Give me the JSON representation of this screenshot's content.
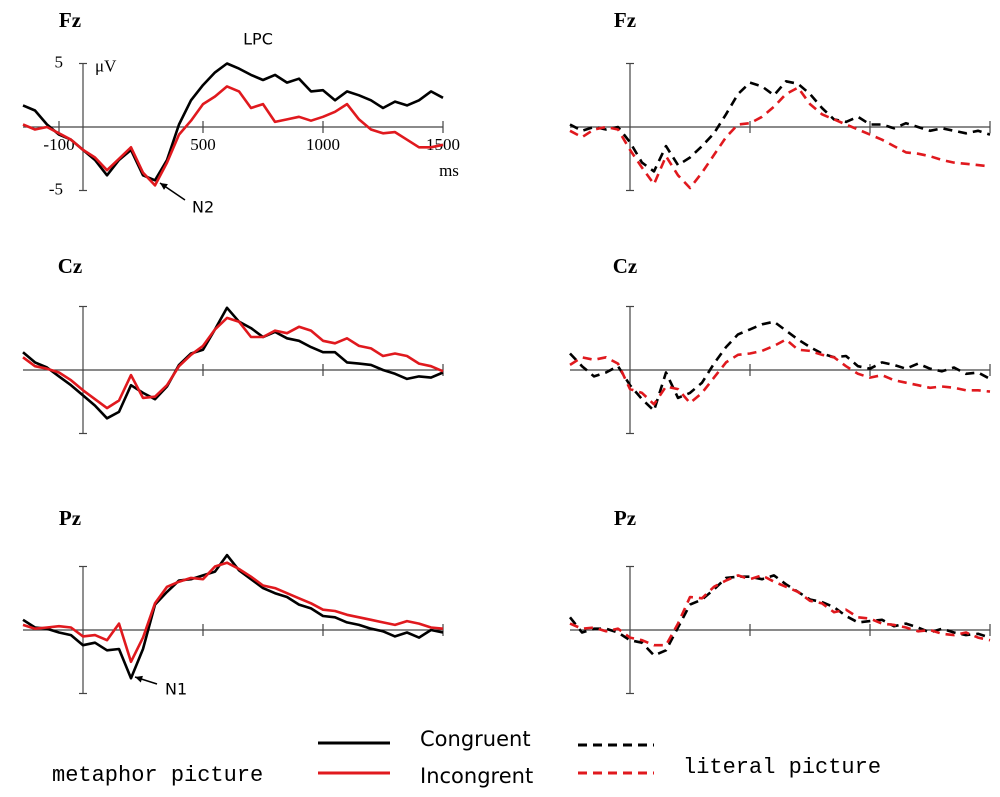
{
  "chart_data": [
    {
      "type": "line",
      "title": "Fz",
      "xlabel": "ms",
      "ylabel": "μV",
      "dashed": false,
      "show_tick_labels": true,
      "annotations": [
        "LPC",
        "N2"
      ],
      "x": [
        -250,
        -200,
        -150,
        -100,
        -50,
        0,
        50,
        100,
        150,
        200,
        250,
        300,
        350,
        400,
        450,
        500,
        550,
        600,
        650,
        700,
        750,
        800,
        850,
        900,
        950,
        1000,
        1050,
        1100,
        1150,
        1200,
        1250,
        1300,
        1350,
        1400,
        1450,
        1500
      ],
      "xlim": [
        -250,
        1500
      ],
      "xticks": [
        -100,
        500,
        1000,
        1500
      ],
      "ylim": [
        -5,
        5
      ],
      "yticks": [
        -5,
        5
      ],
      "series": [
        {
          "name": "Congruent",
          "color": "#000000",
          "values": [
            1.7,
            1.3,
            0.2,
            -0.6,
            -1,
            -1.8,
            -2.6,
            -3.8,
            -2.6,
            -1.8,
            -3.8,
            -4.2,
            -2.6,
            0.2,
            2.1,
            3.3,
            4.3,
            5,
            4.6,
            4.1,
            3.7,
            4.1,
            3.5,
            3.8,
            2.8,
            2.9,
            2.1,
            2.8,
            2.5,
            2.1,
            1.5,
            2,
            1.7,
            2.1,
            2.8,
            2.3
          ]
        },
        {
          "name": "Incongrent",
          "color": "#e0191e",
          "values": [
            0.2,
            -0.2,
            0,
            -0.5,
            -1,
            -1.8,
            -2.4,
            -3.4,
            -2.5,
            -1.6,
            -3.6,
            -4.6,
            -2.8,
            -0.6,
            0.5,
            1.8,
            2.4,
            3.2,
            2.8,
            1.5,
            1.8,
            0.4,
            0.6,
            0.8,
            0.5,
            0.8,
            1.2,
            1.8,
            0.6,
            -0.2,
            -0.5,
            -0.4,
            -1,
            -1.6,
            -1.6,
            -1.4
          ]
        }
      ]
    },
    {
      "type": "line",
      "title": "Cz",
      "dashed": false,
      "show_tick_labels": false,
      "x": [
        -250,
        -200,
        -150,
        -100,
        -50,
        0,
        50,
        100,
        150,
        200,
        250,
        300,
        350,
        400,
        450,
        500,
        550,
        600,
        650,
        700,
        750,
        800,
        850,
        900,
        950,
        1000,
        1050,
        1100,
        1150,
        1200,
        1250,
        1300,
        1350,
        1400,
        1450,
        1500
      ],
      "xlim": [
        -250,
        1500
      ],
      "xticks": [
        500,
        1000,
        1500
      ],
      "ylim": [
        -5,
        5
      ],
      "yticks": [
        -5,
        5
      ],
      "series": [
        {
          "name": "Congruent",
          "color": "#000000",
          "values": [
            1.4,
            0.6,
            0.2,
            -0.5,
            -1.2,
            -2,
            -2.8,
            -3.8,
            -3.3,
            -1.2,
            -1.8,
            -2.3,
            -1.3,
            0.4,
            1.3,
            1.6,
            3.2,
            4.9,
            3.8,
            3.3,
            2.6,
            3,
            2.5,
            2.3,
            1.8,
            1.4,
            1.4,
            0.6,
            0.5,
            0.4,
            0,
            -0.3,
            -0.7,
            -0.5,
            -0.6,
            -0.2
          ]
        },
        {
          "name": "Incongrent",
          "color": "#e0191e",
          "values": [
            1,
            0.3,
            0.1,
            -0.2,
            -0.8,
            -1.6,
            -2.3,
            -3,
            -2.4,
            -0.4,
            -2.2,
            -2.1,
            -1.2,
            0.3,
            1.2,
            1.9,
            3.2,
            4.1,
            3.8,
            2.6,
            2.6,
            3.1,
            2.9,
            3.4,
            3.1,
            2.3,
            2.1,
            2.5,
            1.9,
            1.7,
            1.1,
            1.3,
            1.1,
            0.5,
            0.3,
            -0.1
          ]
        }
      ]
    },
    {
      "type": "line",
      "title": "Pz",
      "dashed": false,
      "show_tick_labels": false,
      "annotations": [
        "N1"
      ],
      "x": [
        -250,
        -200,
        -150,
        -100,
        -50,
        0,
        50,
        100,
        150,
        200,
        250,
        300,
        350,
        400,
        450,
        500,
        550,
        600,
        650,
        700,
        750,
        800,
        850,
        900,
        950,
        1000,
        1050,
        1100,
        1150,
        1200,
        1250,
        1300,
        1350,
        1400,
        1450,
        1500
      ],
      "xlim": [
        -250,
        1500
      ],
      "xticks": [
        500,
        1000,
        1500
      ],
      "ylim": [
        -5,
        5
      ],
      "yticks": [
        -5,
        5
      ],
      "series": [
        {
          "name": "Congruent",
          "color": "#000000",
          "values": [
            0.8,
            0.2,
            0.1,
            -0.2,
            -0.4,
            -1.2,
            -1,
            -1.6,
            -1.5,
            -3.8,
            -1.5,
            2,
            3,
            3.9,
            4,
            4.3,
            4.6,
            5.9,
            4.7,
            4,
            3.3,
            2.9,
            2.6,
            2,
            1.7,
            1.1,
            1,
            0.6,
            0.4,
            0.1,
            -0.1,
            -0.5,
            -0.2,
            -0.6,
            0,
            -0.2
          ]
        },
        {
          "name": "Incongrent",
          "color": "#e0191e",
          "values": [
            0.4,
            0.1,
            0.2,
            0.3,
            0.2,
            -0.5,
            -0.4,
            -0.8,
            0.5,
            -2.5,
            -0.6,
            2.1,
            3.4,
            3.8,
            4.1,
            4,
            5,
            5.3,
            4.8,
            4.2,
            3.5,
            3.3,
            2.9,
            2.5,
            2.1,
            1.6,
            1.5,
            1.2,
            1,
            0.8,
            0.6,
            0.4,
            0.7,
            0.5,
            0.2,
            0.1
          ]
        }
      ]
    },
    {
      "type": "line",
      "title": "Fz",
      "dashed": true,
      "show_tick_labels": false,
      "x": [
        -250,
        -200,
        -150,
        -100,
        -50,
        0,
        50,
        100,
        150,
        200,
        250,
        300,
        350,
        400,
        450,
        500,
        550,
        600,
        650,
        700,
        750,
        800,
        850,
        900,
        950,
        1000,
        1050,
        1100,
        1150,
        1200,
        1250,
        1300,
        1350,
        1400,
        1450,
        1500
      ],
      "xlim": [
        -250,
        1500
      ],
      "xticks": [
        500,
        1000,
        1500
      ],
      "ylim": [
        -5,
        5
      ],
      "yticks": [
        -5,
        5
      ],
      "series": [
        {
          "name": "Congruent",
          "color": "#000000",
          "values": [
            0.2,
            -0.3,
            0,
            -0.2,
            0,
            -1.2,
            -2.8,
            -3.5,
            -1.5,
            -3,
            -2.4,
            -1.5,
            -0.5,
            1,
            2.6,
            3.5,
            3.2,
            2.5,
            3.6,
            3.4,
            2.6,
            1.5,
            0.6,
            0.4,
            0.8,
            0.2,
            0.2,
            -0.1,
            0.3,
            0,
            -0.3,
            -0.1,
            -0.3,
            -0.5,
            -0.3,
            -0.6
          ]
        },
        {
          "name": "Incongrent",
          "color": "#e0191e",
          "values": [
            -0.3,
            -0.8,
            -0.2,
            0,
            -0.2,
            -1.8,
            -3.2,
            -4.5,
            -2.3,
            -3.8,
            -4.8,
            -3.6,
            -2.2,
            -0.8,
            0.2,
            0.3,
            0.8,
            1.6,
            2.6,
            3.1,
            1.8,
            1,
            0.6,
            0.2,
            -0.2,
            -0.6,
            -1,
            -1.5,
            -2,
            -2.1,
            -2.3,
            -2.6,
            -2.8,
            -2.9,
            -3,
            -3.1
          ]
        }
      ]
    },
    {
      "type": "line",
      "title": "Cz",
      "dashed": true,
      "show_tick_labels": false,
      "x": [
        -250,
        -200,
        -150,
        -100,
        -50,
        0,
        50,
        100,
        150,
        200,
        250,
        300,
        350,
        400,
        450,
        500,
        550,
        600,
        650,
        700,
        750,
        800,
        850,
        900,
        950,
        1000,
        1050,
        1100,
        1150,
        1200,
        1250,
        1300,
        1350,
        1400,
        1450,
        1500
      ],
      "xlim": [
        -250,
        1500
      ],
      "xticks": [
        500,
        1000,
        1500
      ],
      "ylim": [
        -5,
        5
      ],
      "yticks": [
        -5,
        5
      ],
      "series": [
        {
          "name": "Congruent",
          "color": "#000000",
          "values": [
            1.3,
            0.3,
            -0.5,
            -0.2,
            0.3,
            -1.2,
            -2.3,
            -3.2,
            -0.2,
            -2.2,
            -1.8,
            -1,
            0.5,
            1.8,
            2.8,
            3.2,
            3.6,
            3.8,
            3.1,
            2.4,
            1.8,
            1.3,
            1,
            1.1,
            0.3,
            0.1,
            0.6,
            0.4,
            0.1,
            0.5,
            0.1,
            -0.1,
            0.2,
            -0.3,
            -0.2,
            -0.7
          ]
        },
        {
          "name": "Incongrent",
          "color": "#e0191e",
          "values": [
            0.4,
            1,
            0.8,
            1,
            0.5,
            -1.5,
            -1.8,
            -2.7,
            -1.3,
            -1.5,
            -2.6,
            -1.8,
            -0.6,
            0.6,
            1.2,
            1.3,
            1.5,
            1.9,
            2.4,
            1.6,
            1.5,
            1.2,
            1,
            0.3,
            -0.3,
            -0.6,
            -0.4,
            -0.8,
            -1,
            -1.2,
            -1.4,
            -1.3,
            -1.4,
            -1.6,
            -1.6,
            -1.7
          ]
        }
      ]
    },
    {
      "type": "line",
      "title": "Pz",
      "dashed": true,
      "show_tick_labels": false,
      "x": [
        -250,
        -200,
        -150,
        -100,
        -50,
        0,
        50,
        100,
        150,
        200,
        250,
        300,
        350,
        400,
        450,
        500,
        550,
        600,
        650,
        700,
        750,
        800,
        850,
        900,
        950,
        1000,
        1050,
        1100,
        1150,
        1200,
        1250,
        1300,
        1350,
        1400,
        1450,
        1500
      ],
      "xlim": [
        -250,
        1500
      ],
      "xticks": [
        500,
        1000,
        1500
      ],
      "ylim": [
        -5,
        5
      ],
      "yticks": [
        -5,
        5
      ],
      "series": [
        {
          "name": "Congruent",
          "color": "#000000",
          "values": [
            1,
            -0.2,
            0.1,
            0.1,
            -0.2,
            -0.8,
            -1,
            -2,
            -1.6,
            0.2,
            2,
            2.4,
            3.2,
            4.1,
            4.2,
            4.2,
            4,
            4.3,
            3.6,
            3,
            2.4,
            2.2,
            1.8,
            1.1,
            0.6,
            0.7,
            0.8,
            0.3,
            0.5,
            0.2,
            -0.2,
            0.1,
            -0.2,
            -0.4,
            -0.3,
            -0.6
          ]
        },
        {
          "name": "Incongrent",
          "color": "#e0191e",
          "values": [
            0.5,
            0.1,
            0.2,
            -0.1,
            0.1,
            -0.6,
            -0.8,
            -1.2,
            -1.2,
            0.5,
            2.6,
            2.5,
            3.4,
            3.9,
            4.3,
            4,
            4.3,
            3.8,
            3.4,
            3,
            2.3,
            2.1,
            1.4,
            1.6,
            1,
            0.9,
            0.5,
            0.4,
            0.2,
            -0.1,
            0,
            -0.3,
            -0.4,
            -0.2,
            -0.6,
            -0.8
          ]
        }
      ]
    }
  ],
  "legend": {
    "groups": [
      "metaphor picture",
      "literal picture"
    ]
  }
}
